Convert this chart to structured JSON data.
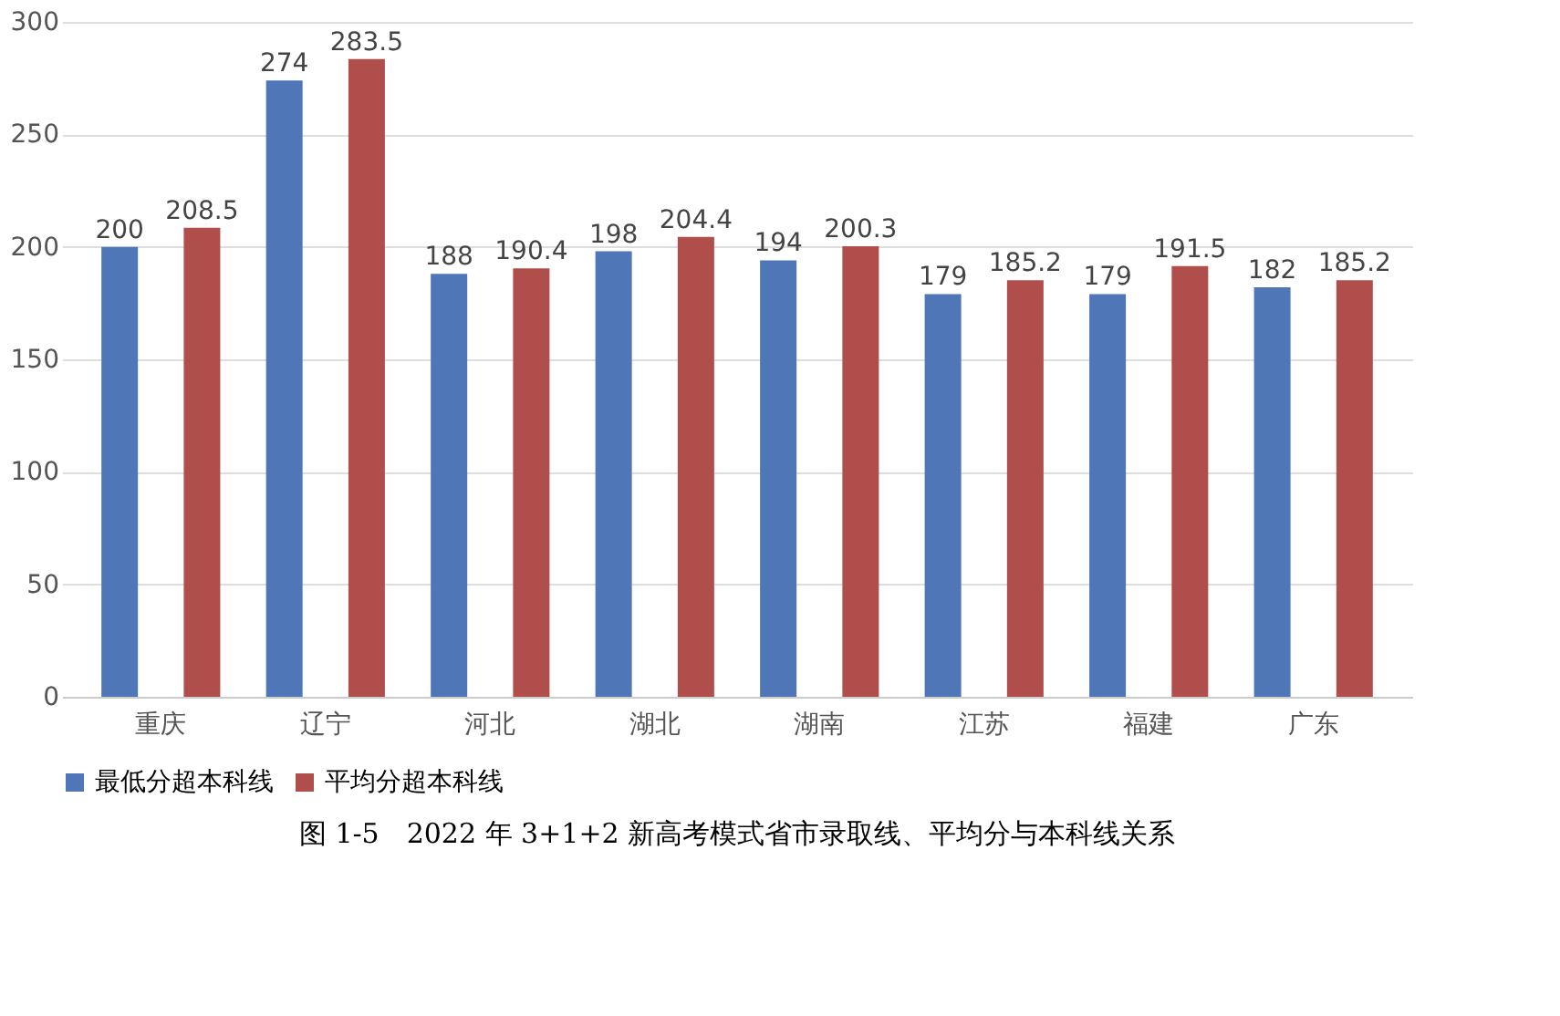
{
  "chart_data": {
    "type": "bar",
    "categories": [
      "重庆",
      "辽宁",
      "河北",
      "湖北",
      "湖南",
      "江苏",
      "福建",
      "广东"
    ],
    "series": [
      {
        "name": "最低分超本科线",
        "color": "#4f77b8",
        "values": [
          200,
          274,
          188,
          198,
          194,
          179,
          179,
          182
        ]
      },
      {
        "name": "平均分超本科线",
        "color": "#b04e4b",
        "values": [
          208.5,
          283.5,
          190.4,
          204.4,
          200.3,
          185.2,
          191.5,
          185.2
        ]
      }
    ],
    "ylim": [
      0,
      300
    ],
    "yticks": [
      0,
      50,
      100,
      150,
      200,
      250,
      300
    ],
    "grid": "y",
    "legend": "bottom",
    "data_labels": true,
    "annotations": [
      "图 1-5　2022 年 3+1+2 新高考模式省市录取线、平均分与本科线关系"
    ]
  }
}
